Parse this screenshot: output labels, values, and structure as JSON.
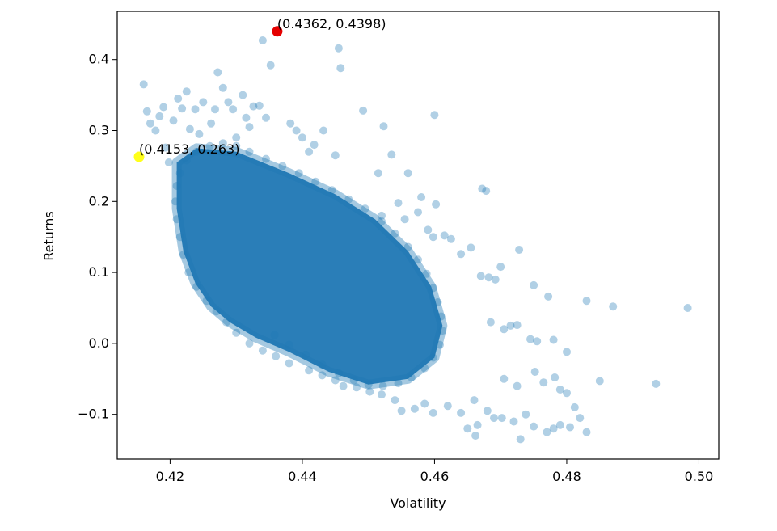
{
  "chart_data": {
    "type": "scatter",
    "xlabel": "Volatility",
    "ylabel": "Returns",
    "xlim": [
      0.412,
      0.503
    ],
    "ylim": [
      -0.163,
      0.468
    ],
    "xticks": [
      {
        "value": 0.42,
        "label": "0.42"
      },
      {
        "value": 0.44,
        "label": "0.44"
      },
      {
        "value": 0.46,
        "label": "0.46"
      },
      {
        "value": 0.48,
        "label": "0.48"
      },
      {
        "value": 0.5,
        "label": "0.50"
      }
    ],
    "yticks": [
      {
        "value": -0.1,
        "label": "−0.1"
      },
      {
        "value": 0.0,
        "label": "0.0"
      },
      {
        "value": 0.1,
        "label": "0.1"
      },
      {
        "value": 0.2,
        "label": "0.2"
      },
      {
        "value": 0.3,
        "label": "0.3"
      },
      {
        "value": 0.4,
        "label": "0.4"
      }
    ],
    "grid": false,
    "series": [
      {
        "color": "#1f77b4",
        "alpha": 0.35,
        "points": [
          [
            0.416,
            0.365
          ],
          [
            0.4165,
            0.327
          ],
          [
            0.417,
            0.31
          ],
          [
            0.4178,
            0.3
          ],
          [
            0.4184,
            0.32
          ],
          [
            0.419,
            0.333
          ],
          [
            0.4193,
            0.276
          ],
          [
            0.4198,
            0.255
          ],
          [
            0.4205,
            0.314
          ],
          [
            0.4212,
            0.345
          ],
          [
            0.4218,
            0.331
          ],
          [
            0.4225,
            0.355
          ],
          [
            0.423,
            0.302
          ],
          [
            0.4238,
            0.33
          ],
          [
            0.4244,
            0.295
          ],
          [
            0.425,
            0.34
          ],
          [
            0.4262,
            0.31
          ],
          [
            0.4268,
            0.33
          ],
          [
            0.4272,
            0.382
          ],
          [
            0.428,
            0.36
          ],
          [
            0.4288,
            0.34
          ],
          [
            0.4295,
            0.33
          ],
          [
            0.43,
            0.29
          ],
          [
            0.431,
            0.35
          ],
          [
            0.4315,
            0.318
          ],
          [
            0.432,
            0.305
          ],
          [
            0.4326,
            0.334
          ],
          [
            0.4335,
            0.335
          ],
          [
            0.4345,
            0.318
          ],
          [
            0.4352,
            0.392
          ],
          [
            0.434,
            0.427
          ],
          [
            0.4382,
            0.31
          ],
          [
            0.4391,
            0.3
          ],
          [
            0.44,
            0.29
          ],
          [
            0.441,
            0.27
          ],
          [
            0.4418,
            0.28
          ],
          [
            0.4432,
            0.3
          ],
          [
            0.445,
            0.265
          ],
          [
            0.4455,
            0.416
          ],
          [
            0.4458,
            0.388
          ],
          [
            0.4492,
            0.328
          ],
          [
            0.4523,
            0.306
          ],
          [
            0.46,
            0.322
          ],
          [
            0.4515,
            0.24
          ],
          [
            0.4535,
            0.266
          ],
          [
            0.456,
            0.24
          ],
          [
            0.458,
            0.206
          ],
          [
            0.4602,
            0.196
          ],
          [
            0.4672,
            0.218
          ],
          [
            0.4678,
            0.215
          ],
          [
            0.452,
            0.18
          ],
          [
            0.4545,
            0.198
          ],
          [
            0.4555,
            0.175
          ],
          [
            0.4575,
            0.185
          ],
          [
            0.459,
            0.16
          ],
          [
            0.4598,
            0.15
          ],
          [
            0.4615,
            0.152
          ],
          [
            0.4625,
            0.147
          ],
          [
            0.464,
            0.126
          ],
          [
            0.4655,
            0.135
          ],
          [
            0.47,
            0.108
          ],
          [
            0.4728,
            0.132
          ],
          [
            0.467,
            0.095
          ],
          [
            0.4682,
            0.093
          ],
          [
            0.4692,
            0.09
          ],
          [
            0.475,
            0.082
          ],
          [
            0.4772,
            0.066
          ],
          [
            0.483,
            0.06
          ],
          [
            0.487,
            0.052
          ],
          [
            0.4983,
            0.05
          ],
          [
            0.4685,
            0.03
          ],
          [
            0.4705,
            0.02
          ],
          [
            0.4715,
            0.025
          ],
          [
            0.4725,
            0.026
          ],
          [
            0.4745,
            0.006
          ],
          [
            0.4755,
            0.003
          ],
          [
            0.478,
            0.005
          ],
          [
            0.48,
            -0.012
          ],
          [
            0.485,
            -0.053
          ],
          [
            0.4935,
            -0.057
          ],
          [
            0.4705,
            -0.05
          ],
          [
            0.4725,
            -0.06
          ],
          [
            0.4752,
            -0.04
          ],
          [
            0.4765,
            -0.055
          ],
          [
            0.4782,
            -0.048
          ],
          [
            0.479,
            -0.065
          ],
          [
            0.48,
            -0.07
          ],
          [
            0.4812,
            -0.09
          ],
          [
            0.482,
            -0.105
          ],
          [
            0.483,
            -0.125
          ],
          [
            0.466,
            -0.08
          ],
          [
            0.468,
            -0.095
          ],
          [
            0.469,
            -0.105
          ],
          [
            0.4702,
            -0.105
          ],
          [
            0.472,
            -0.11
          ],
          [
            0.4738,
            -0.1
          ],
          [
            0.475,
            -0.117
          ],
          [
            0.478,
            -0.12
          ],
          [
            0.479,
            -0.115
          ],
          [
            0.4805,
            -0.118
          ],
          [
            0.465,
            -0.12
          ],
          [
            0.4662,
            -0.13
          ],
          [
            0.473,
            -0.135
          ],
          [
            0.477,
            -0.125
          ],
          [
            0.4665,
            -0.115
          ],
          [
            0.464,
            -0.098
          ],
          [
            0.462,
            -0.088
          ],
          [
            0.4598,
            -0.098
          ],
          [
            0.4585,
            -0.085
          ],
          [
            0.457,
            -0.092
          ],
          [
            0.455,
            -0.095
          ],
          [
            0.454,
            -0.08
          ],
          [
            0.452,
            -0.072
          ],
          [
            0.4502,
            -0.068
          ],
          [
            0.4482,
            -0.062
          ],
          [
            0.4462,
            -0.06
          ],
          [
            0.445,
            -0.052
          ],
          [
            0.443,
            -0.045
          ],
          [
            0.441,
            -0.038
          ],
          [
            0.438,
            -0.028
          ],
          [
            0.436,
            -0.018
          ],
          [
            0.434,
            -0.01
          ],
          [
            0.432,
            0.0
          ],
          [
            0.43,
            0.015
          ],
          [
            0.4285,
            0.03
          ],
          [
            0.427,
            0.045
          ],
          [
            0.4255,
            0.06
          ],
          [
            0.424,
            0.08
          ],
          [
            0.4228,
            0.1
          ],
          [
            0.422,
            0.125
          ],
          [
            0.4215,
            0.15
          ],
          [
            0.421,
            0.175
          ],
          [
            0.4208,
            0.2
          ],
          [
            0.421,
            0.222
          ],
          [
            0.4215,
            0.24
          ],
          [
            0.4225,
            0.258
          ],
          [
            0.424,
            0.27
          ],
          [
            0.426,
            0.278
          ],
          [
            0.428,
            0.282
          ],
          [
            0.43,
            0.278
          ],
          [
            0.432,
            0.27
          ],
          [
            0.4345,
            0.26
          ],
          [
            0.437,
            0.25
          ],
          [
            0.4395,
            0.24
          ],
          [
            0.442,
            0.228
          ],
          [
            0.4445,
            0.216
          ],
          [
            0.447,
            0.203
          ],
          [
            0.4495,
            0.19
          ],
          [
            0.452,
            0.172
          ],
          [
            0.454,
            0.155
          ],
          [
            0.456,
            0.136
          ],
          [
            0.4575,
            0.118
          ],
          [
            0.4588,
            0.098
          ],
          [
            0.4598,
            0.078
          ],
          [
            0.4605,
            0.058
          ],
          [
            0.461,
            0.038
          ],
          [
            0.4612,
            0.018
          ],
          [
            0.4608,
            -0.002
          ],
          [
            0.4598,
            -0.02
          ],
          [
            0.4585,
            -0.035
          ],
          [
            0.4565,
            -0.048
          ],
          [
            0.4545,
            -0.056
          ],
          [
            0.4522,
            -0.06
          ],
          [
            0.45,
            -0.058
          ],
          [
            0.4478,
            -0.052
          ],
          [
            0.4455,
            -0.042
          ],
          [
            0.443,
            -0.03
          ],
          [
            0.4405,
            -0.016
          ],
          [
            0.438,
            -0.002
          ],
          [
            0.4358,
            0.012
          ]
        ]
      }
    ],
    "highlights": [
      {
        "x": 0.4362,
        "y": 0.4398,
        "color": "#e50000",
        "label": "(0.4362, 0.4398)"
      },
      {
        "x": 0.4153,
        "y": 0.263,
        "color": "#ffff1a",
        "label": "(0.4153, 0.263)"
      }
    ],
    "cloud_core": [
      [
        0.421,
        0.255
      ],
      [
        0.424,
        0.275
      ],
      [
        0.43,
        0.27
      ],
      [
        0.438,
        0.24
      ],
      [
        0.445,
        0.21
      ],
      [
        0.451,
        0.175
      ],
      [
        0.456,
        0.13
      ],
      [
        0.4595,
        0.08
      ],
      [
        0.4612,
        0.025
      ],
      [
        0.46,
        -0.02
      ],
      [
        0.456,
        -0.05
      ],
      [
        0.45,
        -0.058
      ],
      [
        0.444,
        -0.04
      ],
      [
        0.438,
        -0.012
      ],
      [
        0.433,
        0.008
      ],
      [
        0.429,
        0.03
      ],
      [
        0.4262,
        0.052
      ],
      [
        0.4238,
        0.085
      ],
      [
        0.422,
        0.13
      ],
      [
        0.421,
        0.19
      ]
    ]
  }
}
